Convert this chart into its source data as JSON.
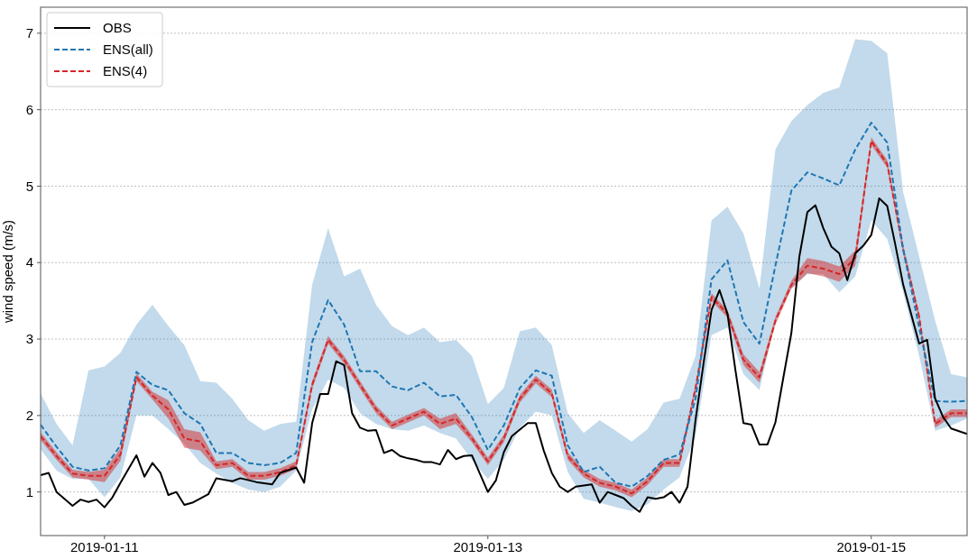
{
  "chart_data": {
    "type": "line",
    "ylabel": "wind speed (m/s)",
    "xlim": [
      "2019-01-10T16:00",
      "2019-01-15T12:00"
    ],
    "xticks": [
      "2019-01-11",
      "2019-01-13",
      "2019-01-15"
    ],
    "ylim": [
      0.43,
      7.34
    ],
    "yticks": [
      1,
      2,
      3,
      4,
      5,
      6,
      7
    ],
    "grid": "y",
    "legend": "top left",
    "x": [
      "2019-01-10T16:00",
      "2019-01-10T18:00",
      "2019-01-10T20:00",
      "2019-01-10T22:00",
      "2019-01-11T00:00",
      "2019-01-11T02:00",
      "2019-01-11T04:00",
      "2019-01-11T06:00",
      "2019-01-11T08:00",
      "2019-01-11T10:00",
      "2019-01-11T12:00",
      "2019-01-11T14:00",
      "2019-01-11T16:00",
      "2019-01-11T18:00",
      "2019-01-11T20:00",
      "2019-01-11T22:00",
      "2019-01-12T00:00",
      "2019-01-12T02:00",
      "2019-01-12T04:00",
      "2019-01-12T06:00",
      "2019-01-12T08:00",
      "2019-01-12T10:00",
      "2019-01-12T12:00",
      "2019-01-12T14:00",
      "2019-01-12T16:00",
      "2019-01-12T18:00",
      "2019-01-12T20:00",
      "2019-01-12T22:00",
      "2019-01-13T00:00",
      "2019-01-13T02:00",
      "2019-01-13T04:00",
      "2019-01-13T06:00",
      "2019-01-13T08:00",
      "2019-01-13T10:00",
      "2019-01-13T12:00",
      "2019-01-13T14:00",
      "2019-01-13T16:00",
      "2019-01-13T18:00",
      "2019-01-13T20:00",
      "2019-01-13T22:00",
      "2019-01-14T00:00",
      "2019-01-14T02:00",
      "2019-01-14T04:00",
      "2019-01-14T06:00",
      "2019-01-14T08:00",
      "2019-01-14T10:00",
      "2019-01-14T12:00",
      "2019-01-14T14:00",
      "2019-01-14T16:00",
      "2019-01-14T18:00",
      "2019-01-14T20:00",
      "2019-01-14T22:00",
      "2019-01-15T00:00",
      "2019-01-15T02:00",
      "2019-01-15T04:00",
      "2019-01-15T06:00",
      "2019-01-15T08:00",
      "2019-01-15T10:00",
      "2019-01-15T12:00"
    ],
    "series": [
      {
        "name": "OBS",
        "color": "#000000",
        "line_style": "solid",
        "x": [
          "2019-01-10T16:00",
          "2019-01-10T17:00",
          "2019-01-10T18:00",
          "2019-01-10T20:00",
          "2019-01-10T21:00",
          "2019-01-10T22:00",
          "2019-01-10T23:00",
          "2019-01-11T00:00",
          "2019-01-11T01:00",
          "2019-01-11T02:00",
          "2019-01-11T04:00",
          "2019-01-11T05:00",
          "2019-01-11T06:00",
          "2019-01-11T07:00",
          "2019-01-11T08:00",
          "2019-01-11T09:00",
          "2019-01-11T10:00",
          "2019-01-11T11:00",
          "2019-01-11T13:00",
          "2019-01-11T14:00",
          "2019-01-11T16:00",
          "2019-01-11T17:00",
          "2019-01-11T19:00",
          "2019-01-11T21:00",
          "2019-01-11T22:00",
          "2019-01-12T00:00",
          "2019-01-12T01:00",
          "2019-01-12T02:00",
          "2019-01-12T03:00",
          "2019-01-12T04:00",
          "2019-01-12T05:00",
          "2019-01-12T06:00",
          "2019-01-12T07:00",
          "2019-01-12T08:00",
          "2019-01-12T09:00",
          "2019-01-12T10:00",
          "2019-01-12T11:00",
          "2019-01-12T12:00",
          "2019-01-12T13:00",
          "2019-01-12T14:00",
          "2019-01-12T15:00",
          "2019-01-12T16:00",
          "2019-01-12T17:00",
          "2019-01-12T18:00",
          "2019-01-12T19:00",
          "2019-01-12T20:00",
          "2019-01-12T21:00",
          "2019-01-12T22:00",
          "2019-01-13T00:00",
          "2019-01-13T01:00",
          "2019-01-13T02:00",
          "2019-01-13T03:00",
          "2019-01-13T05:00",
          "2019-01-13T06:00",
          "2019-01-13T07:00",
          "2019-01-13T08:00",
          "2019-01-13T09:00",
          "2019-01-13T10:00",
          "2019-01-13T11:00",
          "2019-01-13T13:00",
          "2019-01-13T14:00",
          "2019-01-13T15:00",
          "2019-01-13T16:00",
          "2019-01-13T17:00",
          "2019-01-13T18:00",
          "2019-01-13T19:00",
          "2019-01-13T20:00",
          "2019-01-13T21:00",
          "2019-01-13T22:00",
          "2019-01-13T23:00",
          "2019-01-14T00:00",
          "2019-01-14T01:00",
          "2019-01-14T02:00",
          "2019-01-14T03:00",
          "2019-01-14T04:00",
          "2019-01-14T05:00",
          "2019-01-14T06:00",
          "2019-01-14T07:00",
          "2019-01-14T08:00",
          "2019-01-14T09:00",
          "2019-01-14T10:00",
          "2019-01-14T11:00",
          "2019-01-14T12:00",
          "2019-01-14T13:00",
          "2019-01-14T14:00",
          "2019-01-14T15:00",
          "2019-01-14T16:00",
          "2019-01-14T17:00",
          "2019-01-14T18:00",
          "2019-01-14T19:00",
          "2019-01-14T20:00",
          "2019-01-14T21:00",
          "2019-01-14T22:00",
          "2019-01-14T23:00",
          "2019-01-15T00:00",
          "2019-01-15T01:00",
          "2019-01-15T02:00",
          "2019-01-15T03:00",
          "2019-01-15T04:00",
          "2019-01-15T06:00",
          "2019-01-15T07:00",
          "2019-01-15T08:00",
          "2019-01-15T09:00",
          "2019-01-15T10:00",
          "2019-01-15T12:00"
        ],
        "values": [
          1.22,
          1.25,
          1.0,
          0.82,
          0.9,
          0.87,
          0.9,
          0.8,
          0.93,
          1.12,
          1.48,
          1.2,
          1.38,
          1.25,
          0.96,
          1.0,
          0.83,
          0.86,
          0.97,
          1.18,
          1.14,
          1.18,
          1.13,
          1.1,
          1.25,
          1.32,
          1.12,
          1.9,
          2.28,
          2.28,
          2.71,
          2.66,
          2.03,
          1.84,
          1.8,
          1.81,
          1.51,
          1.55,
          1.47,
          1.44,
          1.42,
          1.39,
          1.39,
          1.36,
          1.55,
          1.43,
          1.47,
          1.48,
          1.0,
          1.15,
          1.52,
          1.73,
          1.9,
          1.9,
          1.54,
          1.25,
          1.07,
          1.0,
          1.07,
          1.1,
          0.86,
          1.0,
          0.96,
          0.92,
          0.82,
          0.74,
          0.93,
          0.91,
          0.93,
          1.0,
          0.86,
          1.07,
          1.94,
          2.68,
          3.38,
          3.64,
          3.33,
          2.59,
          1.9,
          1.88,
          1.62,
          1.62,
          1.91,
          2.5,
          3.08,
          4.08,
          4.66,
          4.75,
          4.45,
          4.21,
          4.12,
          3.77,
          4.12,
          4.22,
          4.36,
          4.84,
          4.74,
          4.24,
          3.71,
          2.94,
          2.99,
          2.22,
          1.98,
          1.83,
          1.76
        ]
      },
      {
        "name": "ENS(all)",
        "color": "#1f77b4",
        "line_style": "dashed",
        "values": [
          1.88,
          1.59,
          1.33,
          1.28,
          1.31,
          1.61,
          2.57,
          2.4,
          2.33,
          2.03,
          1.89,
          1.51,
          1.51,
          1.38,
          1.35,
          1.38,
          1.51,
          2.96,
          3.51,
          3.19,
          2.58,
          2.58,
          2.38,
          2.33,
          2.43,
          2.25,
          2.27,
          1.98,
          1.55,
          1.87,
          2.36,
          2.59,
          2.52,
          1.61,
          1.26,
          1.33,
          1.12,
          1.07,
          1.21,
          1.42,
          1.49,
          2.22,
          3.78,
          4.03,
          3.22,
          2.94,
          3.96,
          4.94,
          5.18,
          5.1,
          5.01,
          5.48,
          5.83,
          5.57,
          4.17,
          3.15,
          2.19,
          2.18,
          2.19
        ],
        "lower": [
          1.56,
          1.28,
          1.17,
          1.17,
          0.93,
          1.19,
          2.0,
          2.0,
          1.82,
          1.63,
          1.38,
          1.24,
          1.12,
          1.03,
          1.0,
          1.07,
          1.28,
          2.08,
          2.47,
          2.36,
          2.03,
          1.89,
          1.82,
          1.8,
          1.87,
          1.77,
          1.7,
          1.42,
          1.17,
          1.42,
          1.84,
          2.05,
          2.0,
          1.26,
          0.91,
          0.86,
          0.8,
          0.75,
          0.84,
          1.03,
          1.19,
          1.73,
          3.05,
          3.15,
          2.54,
          2.33,
          3.24,
          3.66,
          3.85,
          3.85,
          3.61,
          3.82,
          4.55,
          4.31,
          3.61,
          2.78,
          1.8,
          1.87,
          1.96
        ],
        "upper": [
          2.29,
          1.89,
          1.61,
          2.59,
          2.64,
          2.82,
          3.19,
          3.45,
          3.17,
          2.92,
          2.45,
          2.43,
          2.22,
          1.94,
          1.8,
          1.89,
          1.92,
          3.71,
          4.45,
          3.82,
          3.92,
          3.45,
          3.17,
          3.05,
          3.15,
          2.96,
          2.99,
          2.78,
          2.15,
          2.36,
          3.1,
          3.15,
          2.92,
          2.03,
          1.77,
          1.94,
          1.8,
          1.66,
          1.82,
          2.17,
          2.22,
          2.78,
          4.55,
          4.73,
          4.38,
          3.66,
          5.48,
          5.85,
          6.06,
          6.22,
          6.29,
          6.92,
          6.9,
          6.74,
          4.92,
          4.08,
          3.24,
          2.54,
          2.5
        ]
      },
      {
        "name": "ENS(4)",
        "color": "#d62728",
        "line_style": "dashed",
        "values": [
          1.73,
          1.47,
          1.24,
          1.21,
          1.21,
          1.49,
          2.5,
          2.26,
          2.08,
          1.7,
          1.66,
          1.35,
          1.38,
          1.21,
          1.21,
          1.26,
          1.35,
          2.4,
          2.99,
          2.73,
          2.4,
          2.08,
          1.87,
          1.96,
          2.05,
          1.89,
          1.96,
          1.7,
          1.4,
          1.7,
          2.22,
          2.47,
          2.29,
          1.47,
          1.24,
          1.12,
          1.07,
          0.98,
          1.14,
          1.38,
          1.38,
          2.36,
          3.55,
          3.33,
          2.73,
          2.5,
          3.24,
          3.71,
          3.96,
          3.92,
          3.85,
          4.06,
          5.59,
          5.29,
          4.17,
          3.29,
          1.89,
          2.03,
          2.03
        ],
        "lower": [
          1.68,
          1.42,
          1.19,
          1.16,
          1.13,
          1.41,
          2.45,
          2.21,
          1.96,
          1.58,
          1.54,
          1.3,
          1.33,
          1.16,
          1.16,
          1.21,
          1.3,
          2.35,
          2.94,
          2.68,
          2.35,
          2.03,
          1.82,
          1.91,
          2.0,
          1.82,
          1.89,
          1.65,
          1.35,
          1.65,
          2.17,
          2.42,
          2.24,
          1.42,
          1.19,
          1.07,
          1.02,
          0.93,
          1.09,
          1.33,
          1.33,
          2.31,
          3.5,
          3.28,
          2.66,
          2.43,
          3.19,
          3.66,
          3.86,
          3.82,
          3.75,
          3.96,
          5.54,
          5.24,
          4.12,
          3.24,
          1.84,
          1.98,
          1.98
        ],
        "upper": [
          1.78,
          1.52,
          1.29,
          1.26,
          1.29,
          1.57,
          2.55,
          2.31,
          2.2,
          1.82,
          1.78,
          1.4,
          1.43,
          1.26,
          1.26,
          1.31,
          1.4,
          2.45,
          3.04,
          2.78,
          2.45,
          2.13,
          1.92,
          2.01,
          2.1,
          1.96,
          2.03,
          1.75,
          1.45,
          1.75,
          2.27,
          2.52,
          2.34,
          1.52,
          1.29,
          1.17,
          1.12,
          1.03,
          1.19,
          1.43,
          1.43,
          2.41,
          3.6,
          3.38,
          2.8,
          2.57,
          3.29,
          3.76,
          4.06,
          4.02,
          3.95,
          4.16,
          5.64,
          5.34,
          4.22,
          3.34,
          1.94,
          2.08,
          2.08
        ]
      }
    ]
  }
}
